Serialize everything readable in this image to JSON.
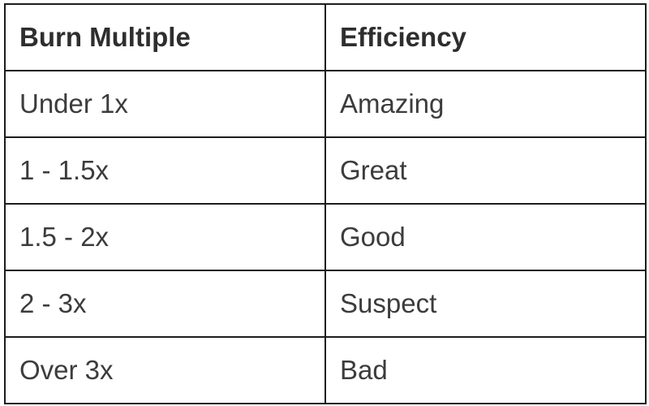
{
  "table": {
    "headers": [
      "Burn Multiple",
      "Efficiency"
    ],
    "rows": [
      [
        "Under 1x",
        "Amazing"
      ],
      [
        "1 - 1.5x",
        "Great"
      ],
      [
        "1.5 - 2x",
        "Good"
      ],
      [
        "2 - 3x",
        "Suspect"
      ],
      [
        "Over 3x",
        "Bad"
      ]
    ]
  }
}
